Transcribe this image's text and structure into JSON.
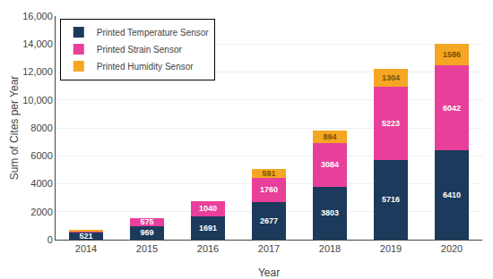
{
  "chart_data": {
    "type": "bar",
    "stacked": true,
    "categories": [
      "2014",
      "2015",
      "2016",
      "2017",
      "2018",
      "2019",
      "2020"
    ],
    "series": [
      {
        "name": "Printed Temperature Sensor",
        "color": "#1b3a5c",
        "values": [
          521,
          969,
          1691,
          2677,
          3803,
          5716,
          6410
        ]
      },
      {
        "name": "Printed Strain Sensor",
        "color": "#e8409a",
        "values": [
          75,
          575,
          1040,
          1760,
          3084,
          5223,
          6042
        ],
        "value_labels": [
          null,
          "575",
          "1040",
          "1760",
          "3084",
          "5223",
          "6042"
        ]
      },
      {
        "name": "Printed Humidity Sensor",
        "color": "#f5a623",
        "values": [
          55,
          0,
          0,
          591,
          894,
          1304,
          1586
        ],
        "value_labels": [
          null,
          null,
          null,
          "591",
          "894",
          "1304",
          "1586"
        ]
      }
    ],
    "xlabel": "Year",
    "ylabel": "Sum of Cites per Year",
    "ylim": [
      0,
      16000
    ],
    "yticks": [
      0,
      2000,
      4000,
      6000,
      8000,
      {
        "value": 10000,
        "label": "10,000"
      },
      {
        "value": 12000,
        "label": "12,000"
      },
      {
        "value": 14000,
        "label": "14,000"
      },
      {
        "value": 16000,
        "label": "16,000"
      }
    ],
    "grid": true,
    "legend": "upper left",
    "data_labels": true
  }
}
